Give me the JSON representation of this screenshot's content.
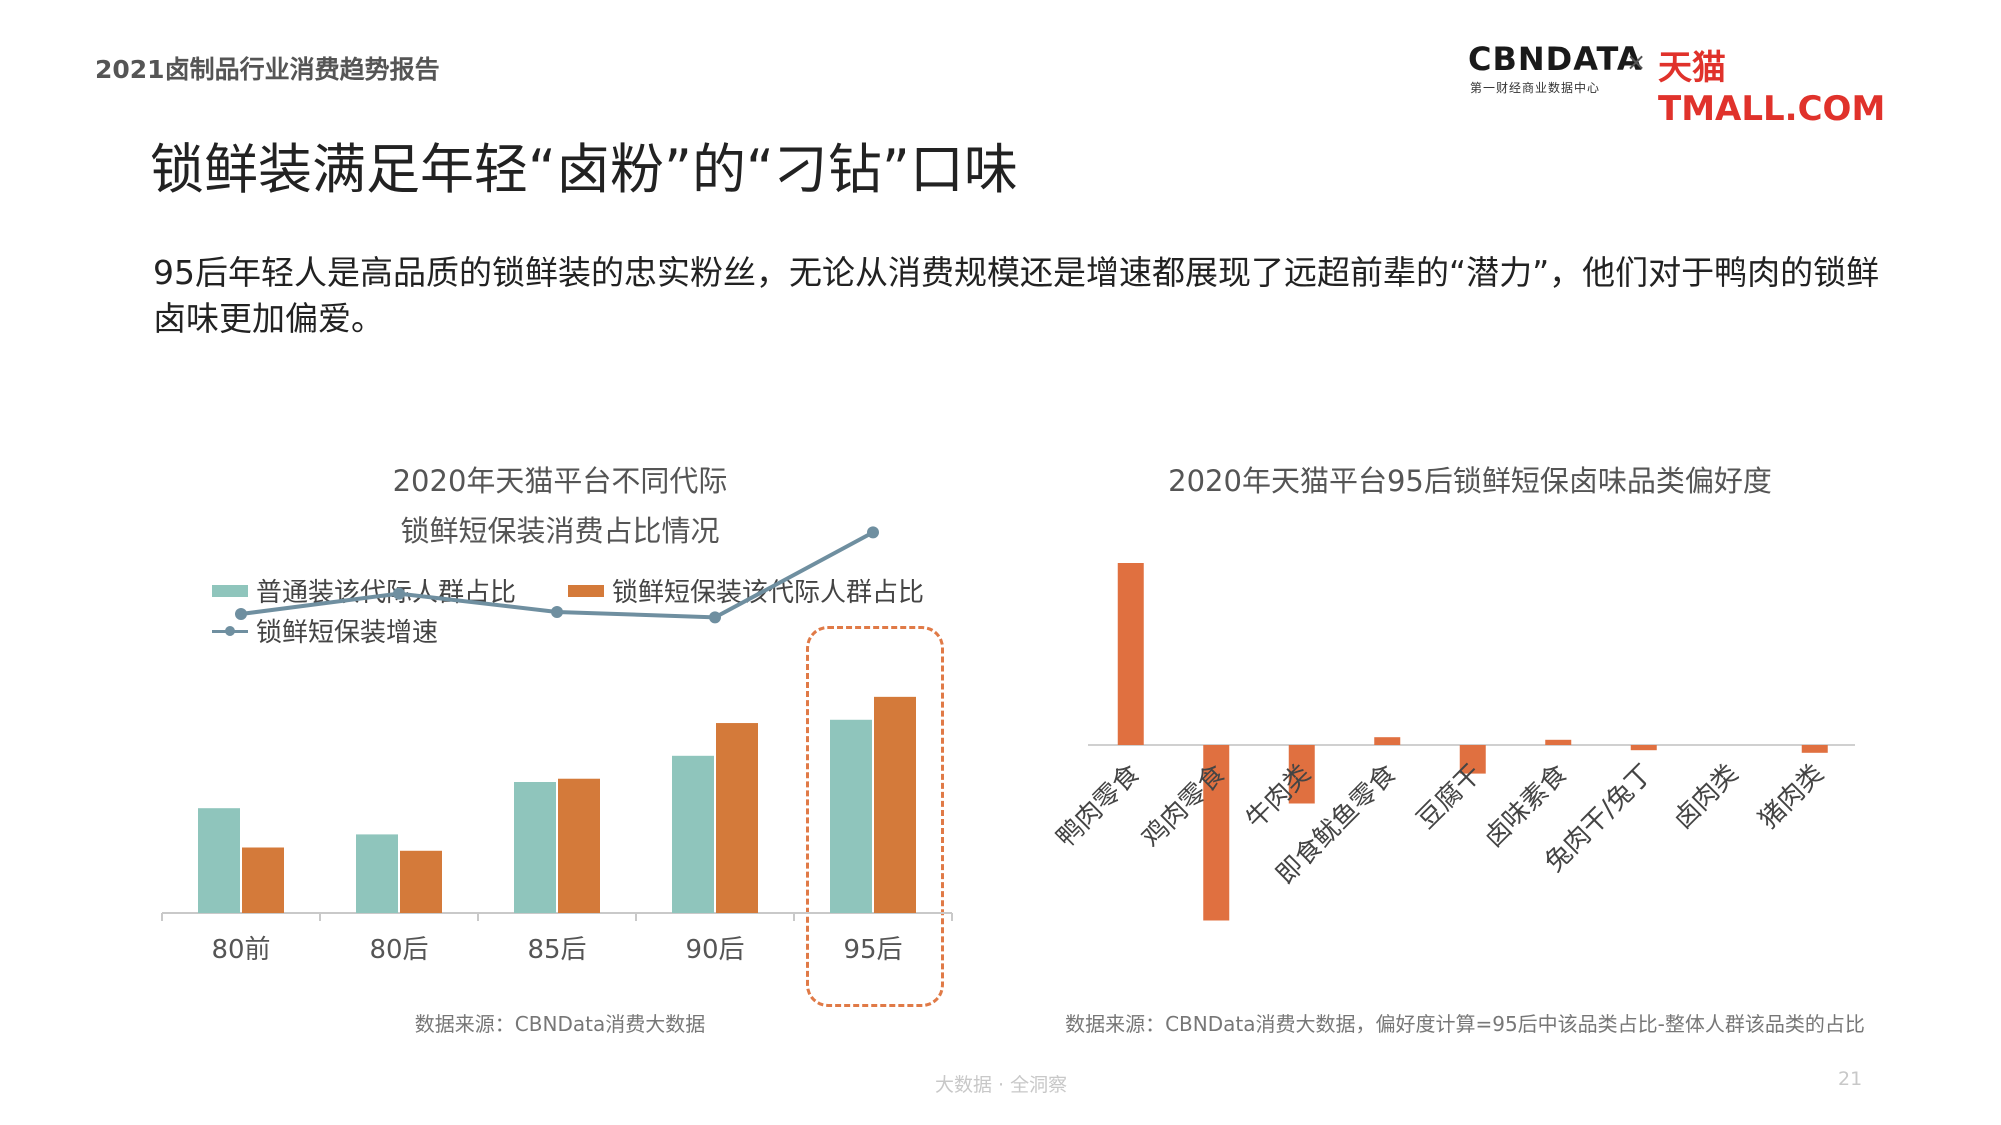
{
  "header": {
    "report_title": "2021卤制品行业消费趋势报告",
    "logo_cbn": "CBNDATA",
    "logo_cbn_sub": "第一财经商业数据中心",
    "logo_times": "×",
    "logo_tmall": "天猫TMALL.COM"
  },
  "main_title": "锁鲜装满足年轻“卤粉”的“刁钻”口味",
  "description": "95后年轻人是高品质的锁鲜装的忠实粉丝，无论从消费规模还是增速都展现了远超前辈的“潜力”，他们对于鸭肉的锁鲜卤味更加偏爱。",
  "colors": {
    "teal": "#8fc5bc",
    "orange": "#d47a3a",
    "line": "#6f8fa0",
    "pref_bar": "#e07040",
    "highlight": "#e07a47"
  },
  "chart_data": [
    {
      "type": "bar",
      "title_line1": "2020年天猫平台不同代际",
      "title_line2": "锁鲜短保装消费占比情况",
      "categories": [
        "80前",
        "80后",
        "85后",
        "90后",
        "95后"
      ],
      "series": [
        {
          "name": "普通装该代际人群占比",
          "kind": "bar",
          "color": "#8fc5bc",
          "values": [
            16,
            12,
            20,
            24,
            29.5
          ]
        },
        {
          "name": "锁鲜短保装该代际人群占比",
          "kind": "bar",
          "color": "#d47a3a",
          "values": [
            10,
            9.5,
            20.5,
            29,
            33
          ]
        },
        {
          "name": "锁鲜短保装增速",
          "kind": "line",
          "color": "#6f8fa0",
          "values": [
            60,
            63,
            60.3,
            59.5,
            72
          ]
        }
      ],
      "highlight_category": "95后",
      "source": "数据来源：CBNData消费大数据"
    },
    {
      "type": "bar",
      "title": "2020年天猫平台95后锁鲜短保卤味品类偏好度",
      "categories": [
        "鸭肉零食",
        "鸡肉零食",
        "牛肉类",
        "即食鱿鱼零食",
        "豆腐干",
        "卤味素食",
        "兔肉干/兔丁",
        "卤肉类",
        "猪肉类"
      ],
      "values": [
        14,
        -13.5,
        -4.5,
        0.6,
        -2.2,
        0.4,
        -0.4,
        0,
        -0.6
      ],
      "source": "数据来源：CBNData消费大数据，偏好度计算=95后中该品类占比-整体人群该品类的占比"
    }
  ],
  "footer": {
    "tagline": "大数据 · 全洞察",
    "page": "21"
  }
}
